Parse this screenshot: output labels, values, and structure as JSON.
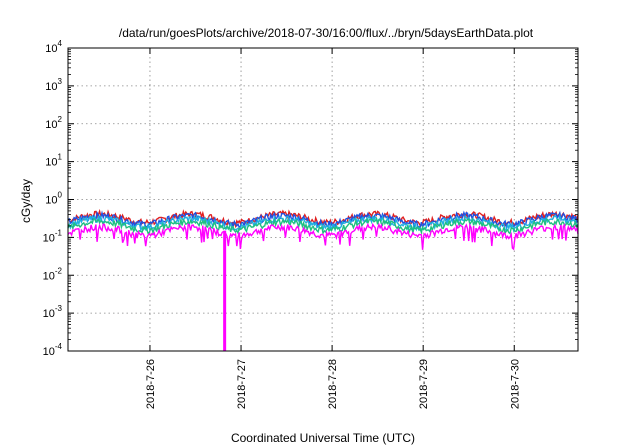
{
  "chart_data": {
    "type": "line",
    "title": "/data/run/goesPlots/archive/2018-07-30/16:00/flux/../bryn/5daysEarthData.plot",
    "xlabel": "Coordinated Universal Time (UTC)",
    "ylabel": "cGy/day",
    "yscale": "log",
    "ylim": [
      0.0001,
      10000
    ],
    "xlim_days": [
      25.1,
      30.7
    ],
    "y_ticks": [
      {
        "base": "10",
        "exp": "-4",
        "value": 0.0001
      },
      {
        "base": "10",
        "exp": "-3",
        "value": 0.001
      },
      {
        "base": "10",
        "exp": "-2",
        "value": 0.01
      },
      {
        "base": "10",
        "exp": "-1",
        "value": 0.1
      },
      {
        "base": "10",
        "exp": "0",
        "value": 1
      },
      {
        "base": "10",
        "exp": "1",
        "value": 10
      },
      {
        "base": "10",
        "exp": "2",
        "value": 100
      },
      {
        "base": "10",
        "exp": "3",
        "value": 1000
      },
      {
        "base": "10",
        "exp": "4",
        "value": 10000
      }
    ],
    "x_ticks": [
      {
        "label": "2018-7-26",
        "day": 26
      },
      {
        "label": "2018-7-27",
        "day": 27
      },
      {
        "label": "2018-7-28",
        "day": 28
      },
      {
        "label": "2018-7-29",
        "day": 29
      },
      {
        "label": "2018-7-30",
        "day": 30
      }
    ],
    "grid": true,
    "series": [
      {
        "color": "#e02020",
        "base": 0.33
      },
      {
        "color": "#2050e0",
        "base": 0.3
      },
      {
        "color": "#20b0e0",
        "base": 0.25
      },
      {
        "color": "#20c080",
        "base": 0.21
      },
      {
        "color": "#ff00ff",
        "base": 0.15
      }
    ],
    "annotations": [
      {
        "series_color": "#ff00ff",
        "day": 26.82,
        "value": 0.0001,
        "note": "sharp drop"
      }
    ]
  }
}
